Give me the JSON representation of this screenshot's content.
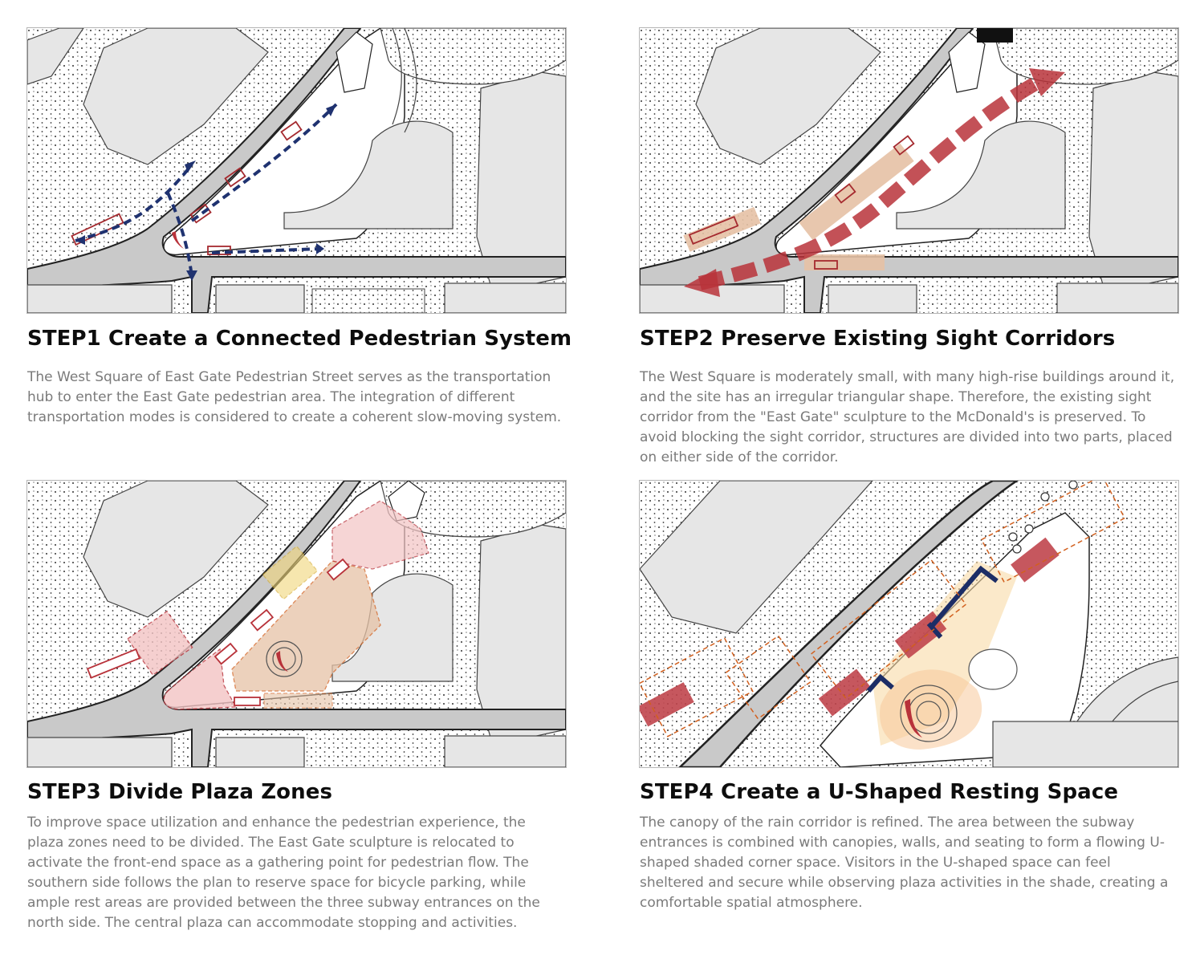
{
  "steps": [
    {
      "title": "STEP1 Create a Connected Pedestrian System",
      "description": "The West Square of East Gate Pedestrian Street serves as the transportation hub to enter the East Gate pedestrian area. The integration of different transportation modes is considered to create a coherent slow-moving system."
    },
    {
      "title": "STEP2 Preserve Existing Sight Corridors",
      "description": "The West Square is moderately small, with many high-rise buildings around it, and the site has an irregular triangular shape. Therefore, the existing sight corridor from the \"East Gate\" sculpture to the McDonald's is preserved. To avoid blocking the sight corridor, structures are divided into two parts, placed on either side of the corridor."
    },
    {
      "title": "STEP3 Divide Plaza Zones",
      "description": "To improve space utilization and enhance the pedestrian experience, the plaza zones need to be divided. The East Gate sculpture is relocated to activate the front-end space as a gathering point for pedestrian flow. The southern side follows the plan to reserve space for bicycle parking, while ample rest areas are provided between the three subway entrances on the north side. The central plaza can accommodate stopping and activities."
    },
    {
      "title": "STEP4 Create a U-Shaped Resting Space",
      "description": "The canopy of the rain corridor is refined. The area between the subway entrances is combined with canopies, walls, and seating to form a flowing U-shaped shaded corner space. Visitors in the U-shaped space can feel sheltered and secure while observing plaza activities in the shade, creating a comfortable spatial atmosphere."
    }
  ],
  "colors": {
    "road": "#c9c9c9",
    "building": "#e6e6e6",
    "path_blue": "#1f3270",
    "corridor_red": "#b8323a",
    "zone_pink": "#f3c4c4",
    "zone_tan": "#e6c2a6",
    "zone_orange": "#d2601e",
    "zone_yellow": "#f1d67a",
    "shade_yellow": "#f8dba6",
    "canopy_navy": "#1c2d66"
  }
}
